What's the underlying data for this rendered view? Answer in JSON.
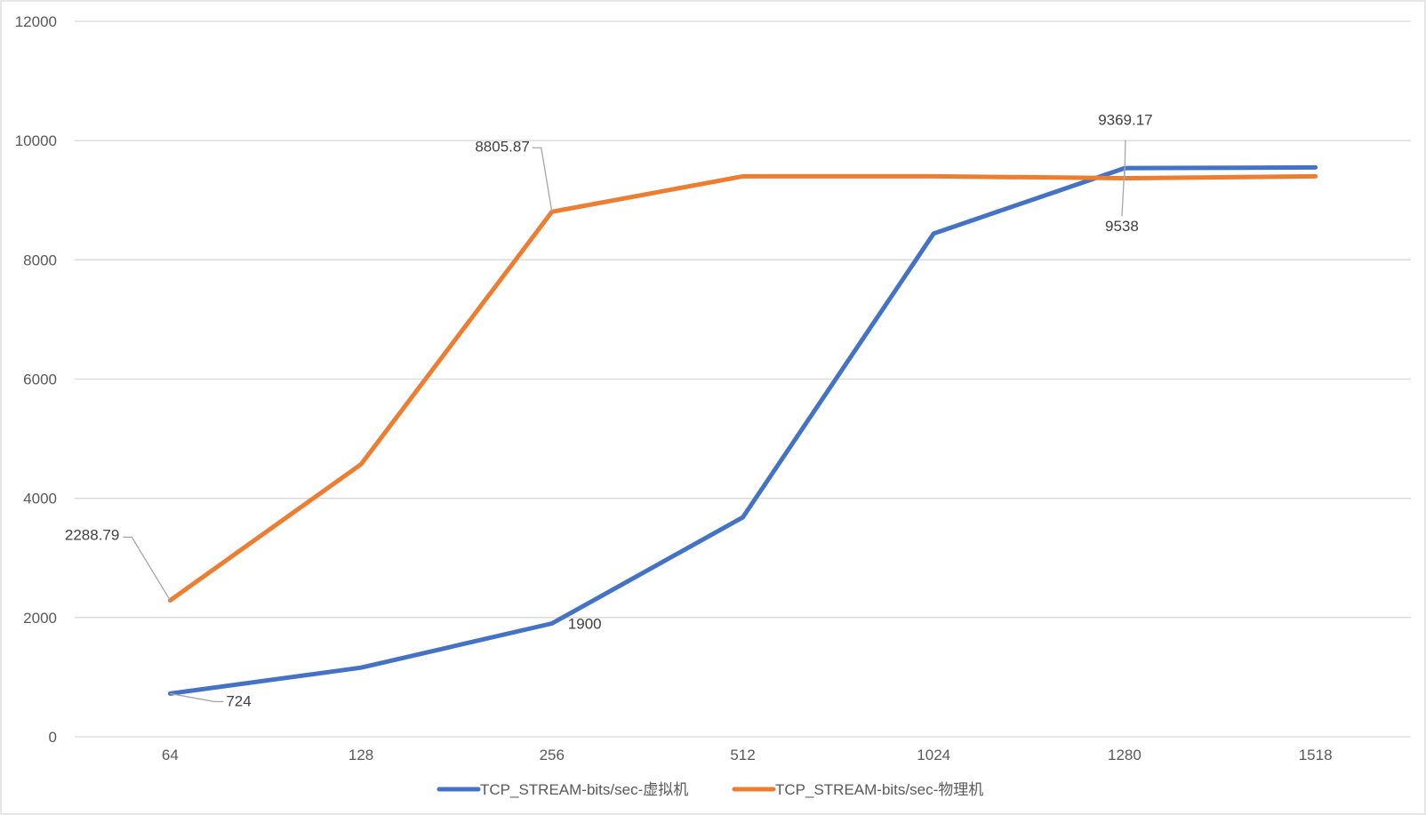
{
  "chart_data": {
    "type": "line",
    "categories": [
      "64",
      "128",
      "256",
      "512",
      "1024",
      "1280",
      "1518"
    ],
    "ylim": [
      0,
      12000
    ],
    "yticks": [
      0,
      2000,
      4000,
      6000,
      8000,
      10000,
      12000
    ],
    "grid": true,
    "legend_position": "bottom",
    "title": "",
    "xlabel": "",
    "ylabel": "",
    "series": [
      {
        "name": "TCP_STREAM-bits/sec-虚拟机",
        "color": "#4472c4",
        "values": [
          724,
          1160,
          1900,
          3680,
          8440,
          9538,
          9550
        ]
      },
      {
        "name": "TCP_STREAM-bits/sec-物理机",
        "color": "#ed7d31",
        "values": [
          2288.79,
          4570,
          8805.87,
          9400,
          9400,
          9369.17,
          9400
        ]
      }
    ],
    "data_labels": [
      {
        "series": 0,
        "index": 0,
        "text": "724"
      },
      {
        "series": 0,
        "index": 2,
        "text": "1900"
      },
      {
        "series": 0,
        "index": 5,
        "text": "9538"
      },
      {
        "series": 1,
        "index": 0,
        "text": "2288.79"
      },
      {
        "series": 1,
        "index": 2,
        "text": "8805.87"
      },
      {
        "series": 1,
        "index": 5,
        "text": "9369.17"
      }
    ]
  }
}
